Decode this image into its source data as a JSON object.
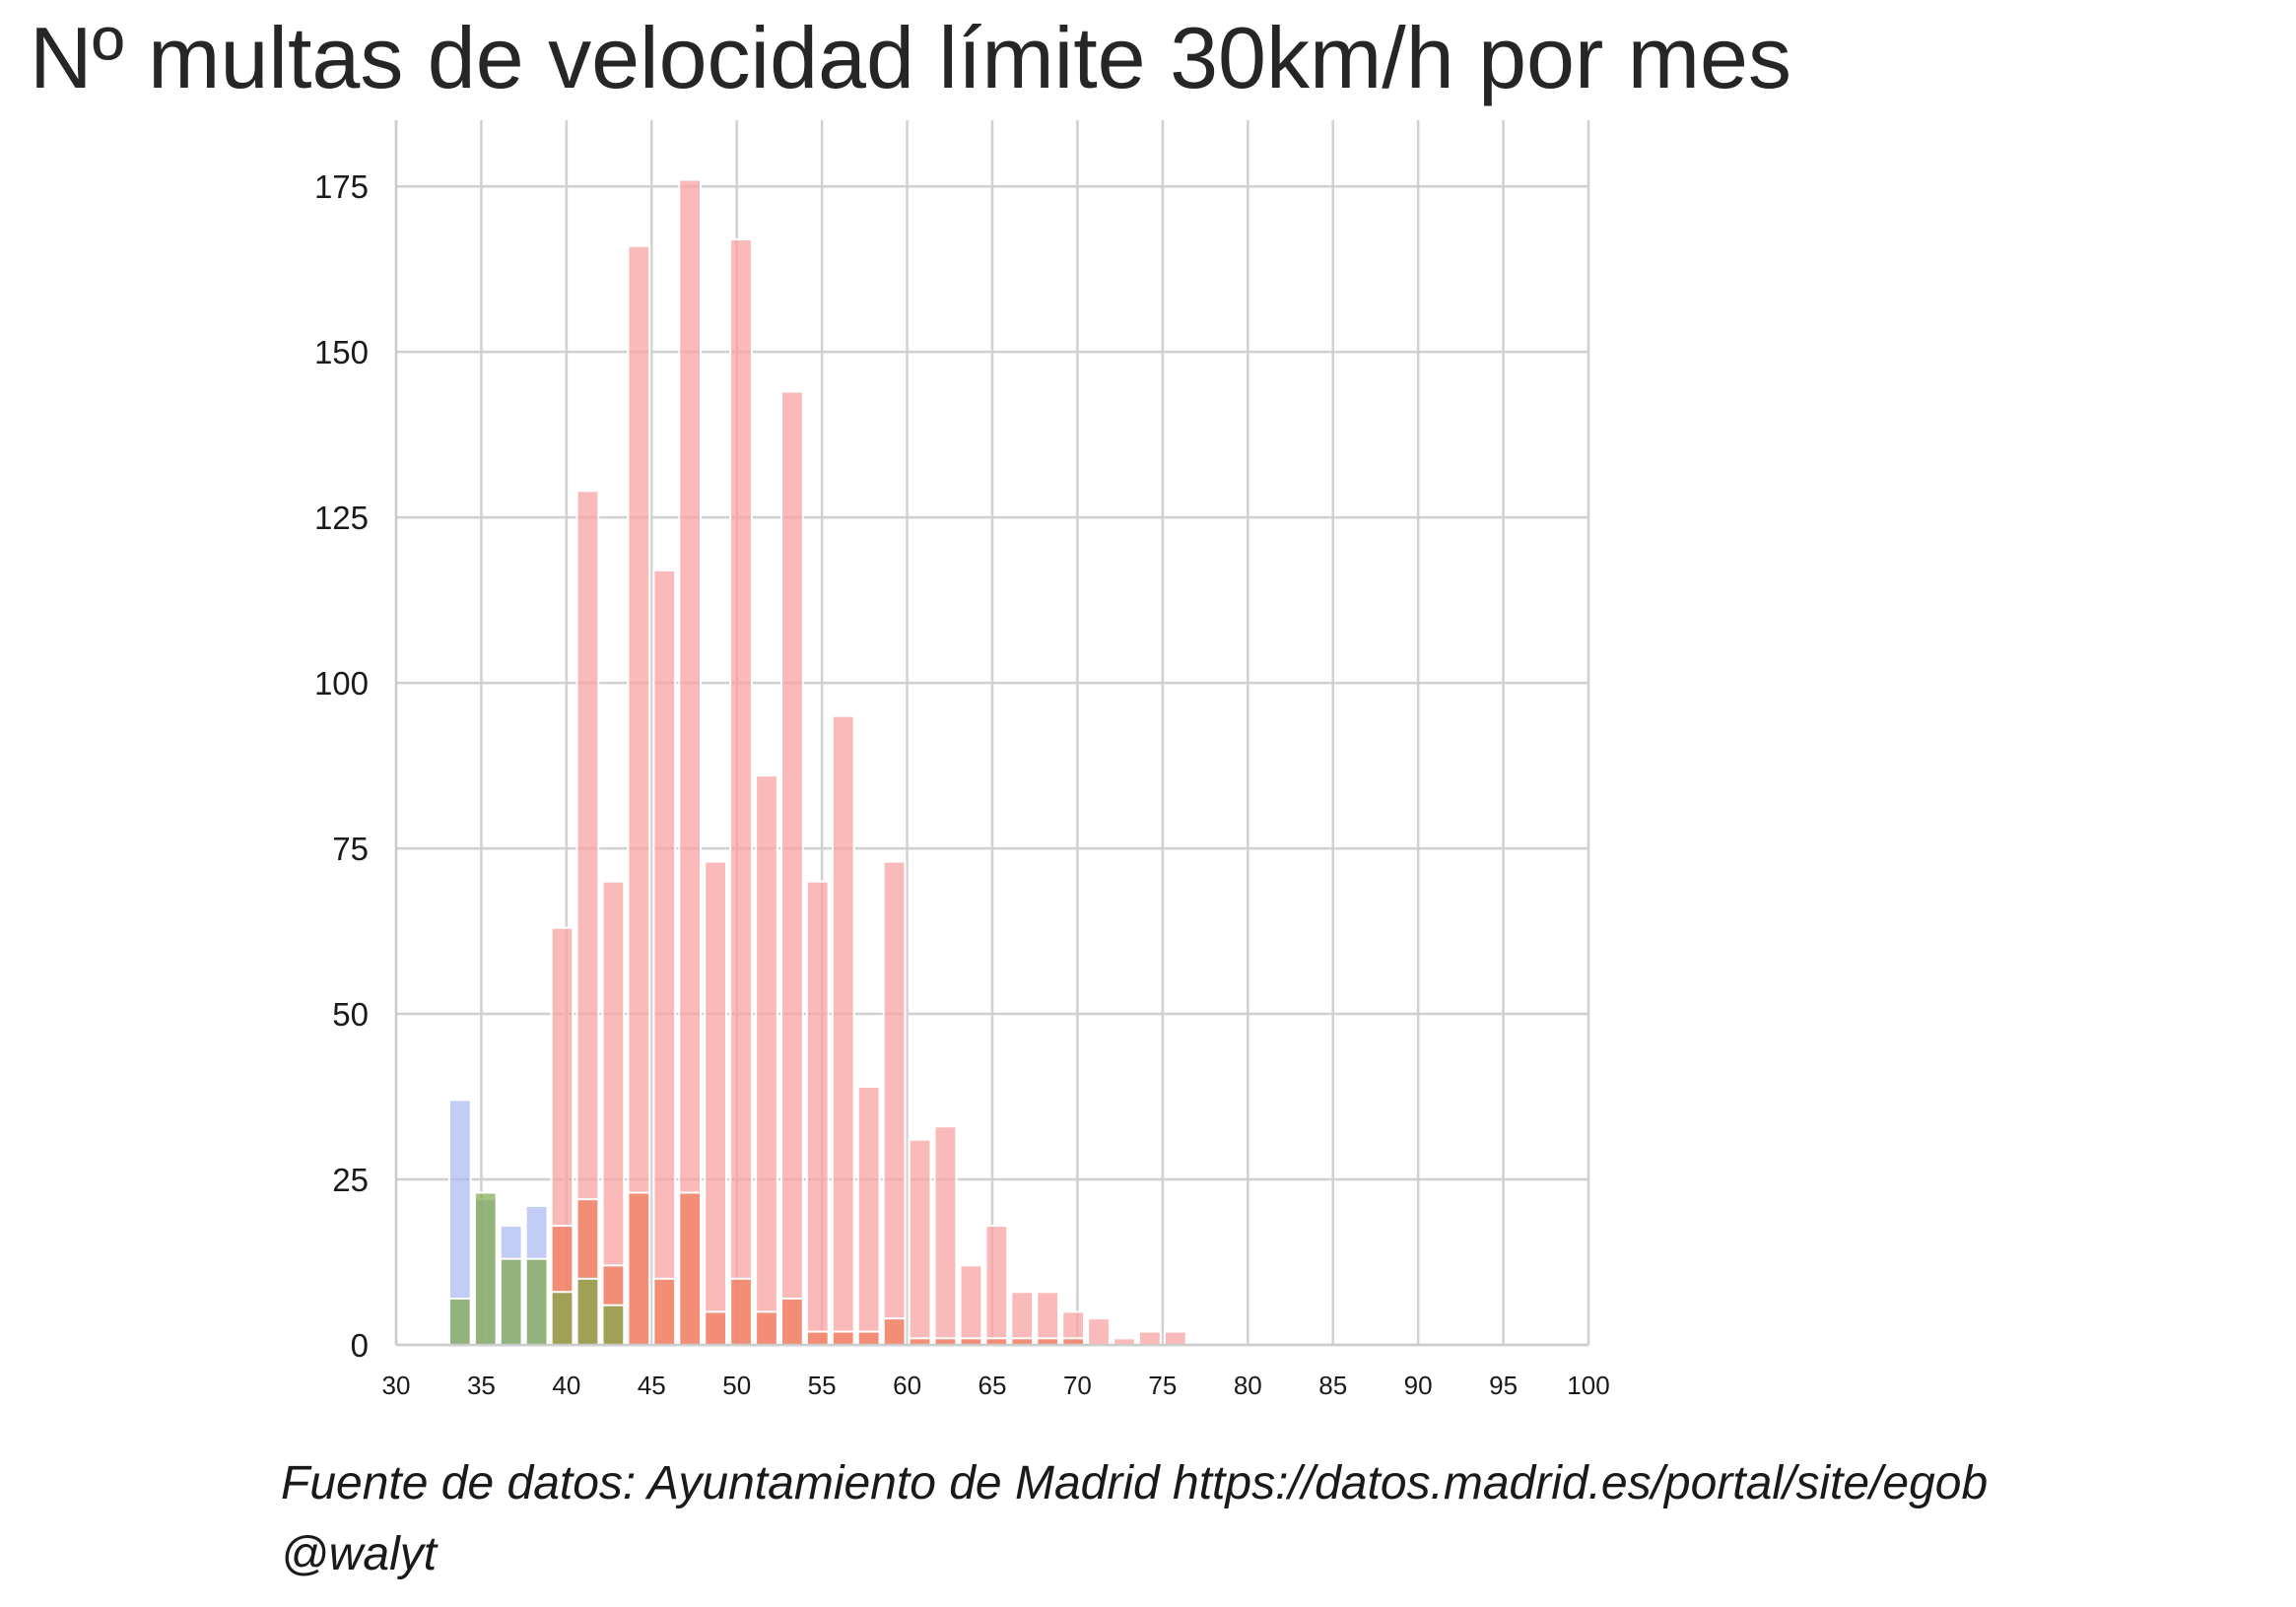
{
  "chart_data": {
    "type": "bar",
    "title": "Nº multas de velocidad límite 30km/h por mes",
    "xlabel": "",
    "ylabel": "",
    "xlim": [
      30,
      100
    ],
    "ylim": [
      0,
      185
    ],
    "x_ticks": [
      "30",
      "35",
      "40",
      "45",
      "50",
      "55",
      "60",
      "65",
      "70",
      "75",
      "80",
      "85",
      "90",
      "95",
      "100"
    ],
    "y_ticks": [
      "0",
      "25",
      "50",
      "75",
      "100",
      "125",
      "150",
      "175"
    ],
    "grid": true,
    "bin_width": 1.5,
    "series": [
      {
        "color": "#f8a3a3",
        "x": [
          39.75,
          41.25,
          42.75,
          44.25,
          45.75,
          47.25,
          48.75,
          50.25,
          51.75,
          53.25,
          54.75,
          56.25,
          57.75,
          59.25,
          60.75,
          62.25,
          63.75,
          65.25,
          66.75,
          68.25,
          69.75,
          71.25,
          72.75,
          74.25,
          75.75
        ],
        "values": [
          63,
          129,
          70,
          166,
          117,
          176,
          73,
          167,
          86,
          144,
          70,
          95,
          39,
          73,
          31,
          33,
          12,
          18,
          8,
          8,
          5,
          4,
          1,
          2,
          2
        ]
      },
      {
        "color": "#ee7a5a",
        "x": [
          39.75,
          41.25,
          42.75,
          44.25,
          45.75,
          47.25,
          48.75,
          50.25,
          51.75,
          53.25,
          54.75,
          56.25,
          57.75,
          59.25,
          60.75,
          62.25,
          63.75,
          65.25,
          66.75,
          68.25,
          69.75,
          71.25
        ],
        "values": [
          18,
          22,
          12,
          23,
          10,
          23,
          5,
          10,
          5,
          7,
          2,
          2,
          2,
          4,
          1,
          1,
          1,
          1,
          1,
          1,
          1,
          0
        ]
      },
      {
        "color": "#a8b8f2",
        "x": [
          33.75,
          35.25,
          36.75,
          38.25
        ],
        "values": [
          37,
          22,
          18,
          21
        ]
      },
      {
        "color": "#7fa84a",
        "x": [
          33.75,
          35.25,
          36.75,
          38.25,
          39.75,
          41.25,
          42.75
        ],
        "values": [
          7,
          23,
          13,
          13,
          8,
          10,
          6
        ]
      }
    ]
  },
  "footer": {
    "source": "Fuente de datos: Ayuntamiento de Madrid https://datos.madrid.es/portal/site/egob",
    "credit": "@walyt"
  }
}
